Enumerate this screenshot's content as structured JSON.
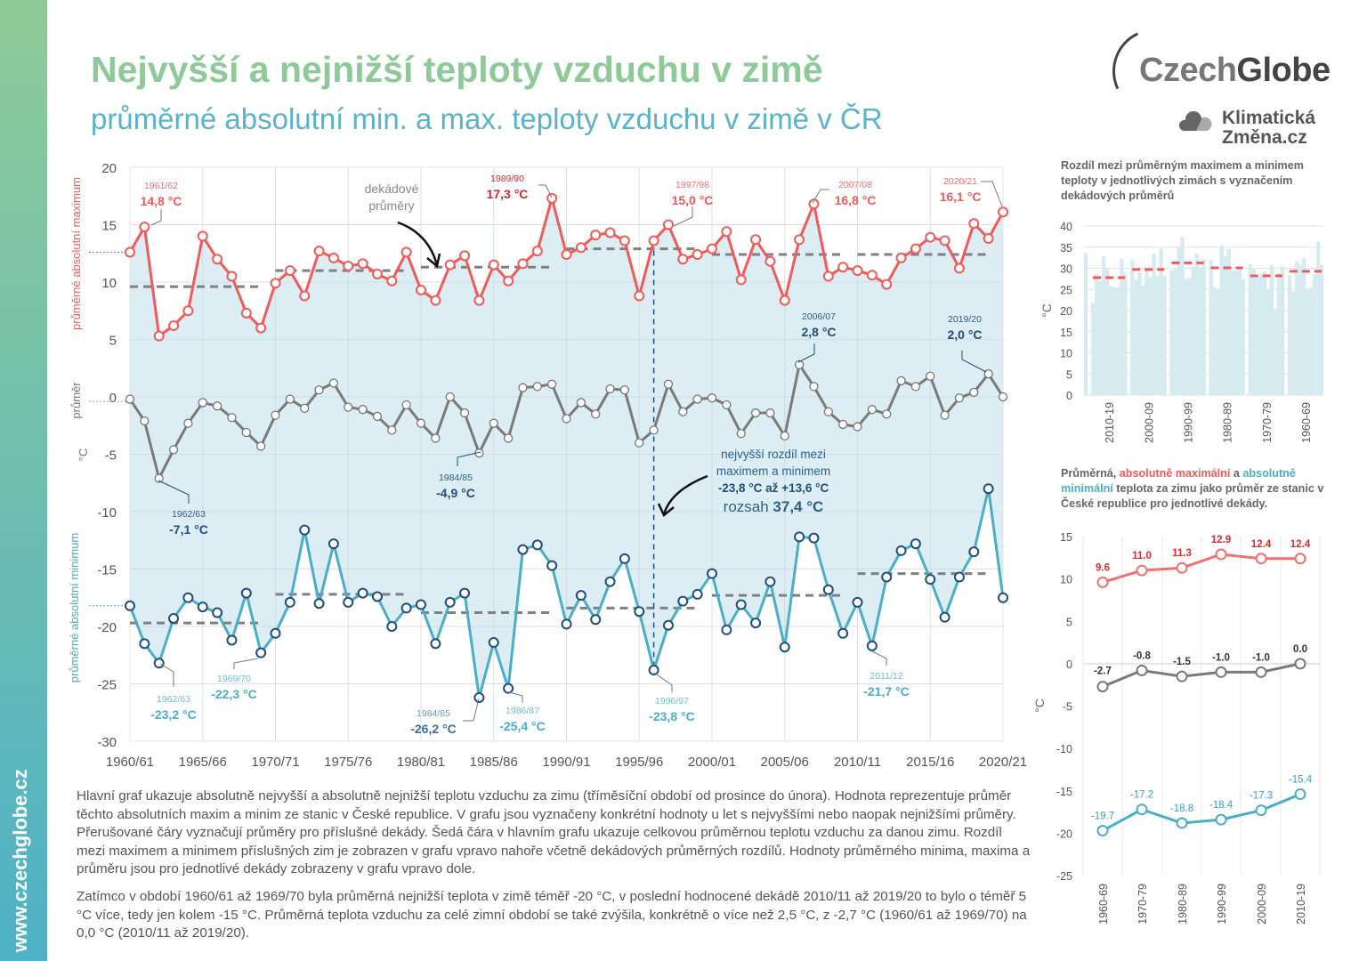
{
  "website": "www.czechglobe.cz",
  "title": "Nejvyšší a nejnižší teploty vzduchu v zimě",
  "subtitle": "průměrné absolutní min. a max. teploty vzduchu v zimě v ČR",
  "logo": {
    "czech": "Czech",
    "globe": "Globe",
    "line1": "Klimatická",
    "line2": "Změna.cz"
  },
  "colors": {
    "max": "#f25a5a",
    "min": "#4aaec6",
    "mean": "#7a7a7a",
    "area": "#dcedf4",
    "title": "#8dca98",
    "subtitle": "#5ab3c9",
    "decade_dash": "#808080"
  },
  "chart_data": [
    {
      "type": "line",
      "ylabel_max": "průměrné absolutní maximum",
      "ylabel_mean": "průměr",
      "ylabel_unit": "°C",
      "ylabel_min": "průměrné absolutní minimum",
      "ylim": [
        -30,
        20
      ],
      "yticks": [
        20,
        15,
        10,
        5,
        0,
        -5,
        -10,
        -15,
        -20,
        -25,
        -30
      ],
      "xtick_labels": [
        "1960/61",
        "1965/66",
        "1970/71",
        "1975/76",
        "1980/81",
        "1985/86",
        "1990/91",
        "1995/96",
        "2000/01",
        "2005/06",
        "2010/11",
        "2015/16",
        "2020/21"
      ],
      "first_winter": 1960,
      "grid": true,
      "series": [
        {
          "key": "max",
          "values": [
            12.6,
            14.8,
            5.3,
            6.2,
            7.5,
            14.0,
            12.0,
            10.5,
            7.3,
            6.0,
            9.9,
            11.0,
            8.8,
            12.7,
            12.1,
            11.4,
            11.6,
            10.7,
            10.1,
            12.6,
            9.3,
            8.4,
            11.5,
            12.3,
            8.4,
            11.5,
            10.1,
            11.6,
            12.7,
            17.3,
            12.4,
            13.0,
            14.1,
            14.3,
            13.6,
            8.8,
            13.6,
            15.0,
            12.0,
            12.4,
            12.9,
            14.4,
            10.2,
            13.7,
            11.8,
            8.4,
            13.7,
            16.8,
            10.5,
            11.3,
            11.0,
            10.6,
            9.8,
            12.1,
            12.9,
            13.9,
            13.6,
            11.2,
            15.1,
            13.8,
            16.1
          ]
        },
        {
          "key": "mean",
          "values": [
            -0.2,
            -2.1,
            -7.1,
            -4.6,
            -2.3,
            -0.5,
            -0.8,
            -1.8,
            -3.1,
            -4.3,
            -1.6,
            -0.2,
            -1.0,
            0.6,
            1.2,
            -0.9,
            -1.1,
            -1.7,
            -2.9,
            -0.7,
            -2.3,
            -3.6,
            0.0,
            -1.4,
            -4.9,
            -2.3,
            -3.6,
            0.8,
            0.9,
            1.1,
            -1.9,
            -0.5,
            -1.5,
            0.7,
            0.6,
            -4.0,
            -2.9,
            1.1,
            -1.3,
            -0.2,
            -0.1,
            -0.7,
            -3.2,
            -1.4,
            -1.4,
            -3.4,
            2.8,
            0.9,
            -1.3,
            -2.4,
            -2.6,
            -1.1,
            -1.5,
            1.4,
            0.9,
            1.8,
            -1.6,
            -0.1,
            0.4,
            2.0,
            0.0
          ]
        },
        {
          "key": "min",
          "values": [
            -18.2,
            -21.5,
            -23.2,
            -19.3,
            -17.5,
            -18.3,
            -18.8,
            -21.2,
            -17.1,
            -22.3,
            -20.6,
            -17.9,
            -11.6,
            -18.0,
            -12.8,
            -17.9,
            -17.1,
            -17.4,
            -20.0,
            -18.4,
            -18.1,
            -21.5,
            -17.9,
            -17.1,
            -26.2,
            -21.4,
            -25.4,
            -13.3,
            -12.9,
            -14.7,
            -19.8,
            -17.3,
            -19.4,
            -16.1,
            -14.1,
            -18.7,
            -23.8,
            -19.9,
            -17.8,
            -17.2,
            -15.4,
            -20.3,
            -18.1,
            -19.7,
            -16.1,
            -21.8,
            -12.2,
            -12.3,
            -16.8,
            -20.6,
            -17.9,
            -21.7,
            -15.7,
            -13.4,
            -12.8,
            -15.9,
            -19.2,
            -15.7,
            -13.5,
            -8.0,
            -17.5
          ]
        }
      ],
      "decade_averages": {
        "max": [
          9.6,
          11.0,
          11.3,
          12.9,
          12.4,
          12.4
        ],
        "mean": [
          -2.7,
          -0.8,
          -1.5,
          -1.0,
          -1.0,
          0.0
        ],
        "min": [
          -19.7,
          -17.2,
          -18.8,
          -18.4,
          -17.3,
          -15.4
        ]
      },
      "annotations": [
        {
          "series": "max",
          "year": "1961/62",
          "value": "14,8 °C"
        },
        {
          "series": "max",
          "year": "1989/90",
          "value": "17,3 °C"
        },
        {
          "series": "max",
          "year": "1997/98",
          "value": "15,0 °C"
        },
        {
          "series": "max",
          "year": "2007/08",
          "value": "16,8 °C"
        },
        {
          "series": "max",
          "year": "2020/21",
          "value": "16,1 °C"
        },
        {
          "series": "mean",
          "year": "2006/07",
          "value": "2,8 °C"
        },
        {
          "series": "mean",
          "year": "2019/20",
          "value": "2,0 °C"
        },
        {
          "series": "mean",
          "year": "1962/63",
          "value": "-7,1 °C"
        },
        {
          "series": "mean",
          "year": "1984/85",
          "value": "-4,9 °C"
        },
        {
          "series": "min",
          "year": "1962/63",
          "value": "-23,2 °C"
        },
        {
          "series": "min",
          "year": "1969/70",
          "value": "-22,3 °C"
        },
        {
          "series": "min",
          "year": "1984/85",
          "value": "-26,2 °C"
        },
        {
          "series": "min",
          "year": "1986/87",
          "value": "-25,4 °C"
        },
        {
          "series": "min",
          "year": "1996/97",
          "value": "-23,8 °C"
        },
        {
          "series": "min",
          "year": "2011/12",
          "value": "-21,7 °C"
        }
      ],
      "decade_note": [
        "dekádové",
        "průměry"
      ],
      "range_note": {
        "line1": "nejvyšší rozdíl mezi",
        "line2": "maximem a minimem",
        "line3": "-23,8 °C až +13,6 °C",
        "prefix": "rozsah ",
        "value": "37,4 °C"
      }
    },
    {
      "type": "bar",
      "title": "Rozdíl mezi průměrným maximem a minimem teploty v jednotlivých zimách s vyznačením dekádových průměrů",
      "ylabel": "°C",
      "ylim": [
        0,
        40
      ],
      "yticks": [
        40,
        35,
        30,
        25,
        20,
        15,
        10,
        5,
        0
      ],
      "values_from": "max minus min of each winter, newest first",
      "categories": [
        "2010-19",
        "2000-09",
        "1990-99",
        "1980-89",
        "1970-79",
        "1960-69"
      ],
      "decade_averages": [
        27.8,
        29.7,
        31.3,
        30.1,
        28.2,
        29.3
      ]
    },
    {
      "type": "line",
      "title_parts": [
        "Průměrná, ",
        "absolutně maximální",
        " a ",
        "absolutně minimální",
        " teplota za zimu jako průměr ze stanic v České republice pro jednotlivé dekády."
      ],
      "ylabel": "°C",
      "ylim": [
        -25,
        15
      ],
      "yticks": [
        15,
        10,
        5,
        0,
        -5,
        -10,
        -15,
        -20,
        -25
      ],
      "categories": [
        "1960-69",
        "1970-79",
        "1980-89",
        "1990-99",
        "2000-09",
        "2010-19"
      ],
      "series": [
        {
          "key": "max",
          "values": [
            9.6,
            11.0,
            11.3,
            12.9,
            12.4,
            12.4
          ],
          "labels": [
            "9.6",
            "11.0",
            "11.3",
            "12.9",
            "12.4",
            "12.4"
          ]
        },
        {
          "key": "mean",
          "values": [
            -2.7,
            -0.8,
            -1.5,
            -1.0,
            -1.0,
            0.0
          ],
          "labels": [
            "-2.7",
            "-0.8",
            "-1.5",
            "-1.0",
            "-1.0",
            "0.0"
          ]
        },
        {
          "key": "min",
          "values": [
            -19.7,
            -17.2,
            -18.8,
            -18.4,
            -17.3,
            -15.4
          ],
          "labels": [
            "-19.7",
            "-17.2",
            "-18.8",
            "-18.4",
            "-17.3",
            "-15.4"
          ]
        }
      ]
    }
  ],
  "text": {
    "p1": "Hlavní graf ukazuje absolutně nejvyšší a absolutně nejnižší teplotu vzduchu za zimu (tříměsíční období od prosince do února). Hodnota reprezentuje průměr těchto absolutních maxim a minim ze stanic v České republice. V grafu jsou vyznačeny konkrétní hodnoty u let s nejvyššími nebo naopak nejnižšími průměry. Přerušované čáry vyznačují průměry pro příslušné dekády. Šedá čára v hlavním grafu ukazuje celkovou průměrnou teplotu vzduchu za danou zimu. Rozdíl mezi maximem a minimem příslušných zim je zobrazen v grafu vpravo nahoře včetně dekádových průměrných rozdílů. Hodnoty průměrného minima, maxima a průměru jsou pro jednotlivé dekády zobrazeny v grafu vpravo dole.",
    "p2": "Zatímco v období 1960/61 až 1969/70 byla průměrná nejnižší teplota v zimě téměř -20 °C, v poslední hodnocené dekádě 2010/11 až 2019/20 to bylo o téměř 5 °C více, tedy jen kolem -15 °C. Průměrná teplota vzduchu za celé zimní období se také zvýšila, konkrétně o více než 2,5 °C, z -2,7 °C (1960/61 až 1969/70) na 0,0 °C (2010/11 až 2019/20)."
  }
}
